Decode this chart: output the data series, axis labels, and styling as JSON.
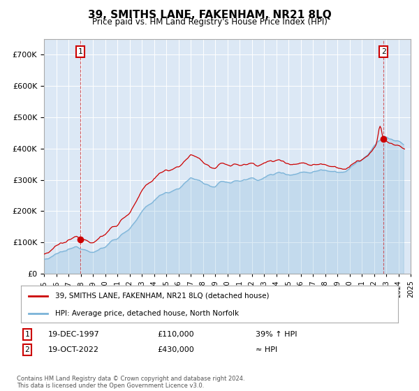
{
  "title": "39, SMITHS LANE, FAKENHAM, NR21 8LQ",
  "subtitle": "Price paid vs. HM Land Registry's House Price Index (HPI)",
  "legend_line1": "39, SMITHS LANE, FAKENHAM, NR21 8LQ (detached house)",
  "legend_line2": "HPI: Average price, detached house, North Norfolk",
  "sale1_year": 1997.96,
  "sale1_price": 110000,
  "sale2_year": 2022.79,
  "sale2_price": 430000,
  "hpi_color": "#7ab3d8",
  "sale_color": "#cc0000",
  "plot_bg": "#dce8f5",
  "footer": "Contains HM Land Registry data © Crown copyright and database right 2024.\nThis data is licensed under the Open Government Licence v3.0.",
  "ylim": [
    0,
    750000
  ],
  "xlim_start": 1995.0,
  "xlim_end": 2025.0
}
